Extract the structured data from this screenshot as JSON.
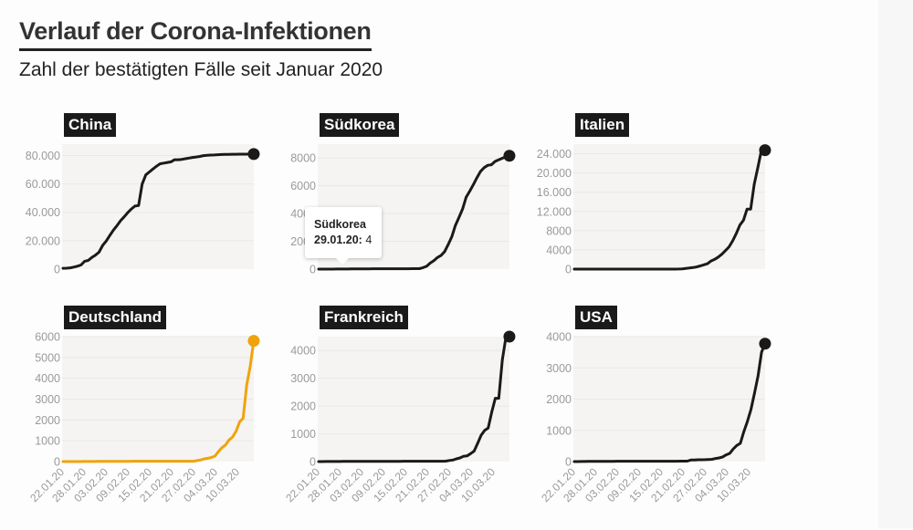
{
  "header": {
    "title": "Verlauf der Corona-Infektionen",
    "subtitle": "Zahl der bestätigten Fälle seit Januar 2020"
  },
  "tooltip": {
    "country": "Südkorea",
    "date": "29.01.20:",
    "value": "4"
  },
  "colors": {
    "line_default": "#1a1a1a",
    "line_highlight": "#f0a30a",
    "plot_bg": "#f5f4f2",
    "grid": "#e8e8e8",
    "tick_text": "#9a9a9a"
  },
  "chart_data": [
    {
      "type": "line",
      "title": "China",
      "x_start": "22.01.20",
      "x_end": "15.03.20",
      "xticks": [],
      "ylim": [
        0,
        88000
      ],
      "yticks": [
        0,
        20000,
        40000,
        60000,
        80000
      ],
      "ytick_labels": [
        "0",
        "20.000",
        "40.000",
        "60.000",
        "80.000"
      ],
      "values": [
        548,
        643,
        920,
        1406,
        2075,
        2877,
        5509,
        6087,
        8141,
        9802,
        11891,
        16630,
        19716,
        23707,
        27440,
        30587,
        34110,
        36814,
        39829,
        42354,
        44386,
        44759,
        59895,
        66358,
        68413,
        70513,
        72434,
        74211,
        74619,
        75077,
        75550,
        77001,
        77022,
        77241,
        77754,
        78166,
        78600,
        78928,
        79356,
        79932,
        80136,
        80261,
        80386,
        80537,
        80690,
        80770,
        80823,
        80860,
        80887,
        80921,
        80932,
        80945,
        80977,
        81003
      ],
      "highlight": false
    },
    {
      "type": "line",
      "title": "Südkorea",
      "x_start": "22.01.20",
      "x_end": "15.03.20",
      "xticks": [],
      "ylim": [
        0,
        9000
      ],
      "yticks": [
        0,
        2000,
        4000,
        6000,
        8000
      ],
      "ytick_labels": [
        "0",
        "2000",
        "4000",
        "6000",
        "8000"
      ],
      "values": [
        1,
        1,
        2,
        2,
        3,
        4,
        4,
        4,
        4,
        11,
        12,
        15,
        15,
        16,
        19,
        23,
        24,
        24,
        25,
        27,
        28,
        28,
        28,
        28,
        28,
        29,
        30,
        31,
        31,
        104,
        204,
        433,
        602,
        833,
        977,
        1261,
        1766,
        2337,
        3150,
        3736,
        4335,
        5186,
        5621,
        6088,
        6593,
        7041,
        7314,
        7478,
        7513,
        7755,
        7869,
        7979,
        8086,
        8162
      ],
      "highlight": false
    },
    {
      "type": "line",
      "title": "Italien",
      "x_start": "22.01.20",
      "x_end": "15.03.20",
      "xticks": [],
      "ylim": [
        0,
        26000
      ],
      "yticks": [
        0,
        4000,
        8000,
        12000,
        16000,
        20000,
        24000
      ],
      "ytick_labels": [
        "0",
        "4000",
        "8000",
        "12.000",
        "16.000",
        "20.000",
        "24.000"
      ],
      "values": [
        0,
        0,
        0,
        0,
        0,
        0,
        0,
        0,
        0,
        2,
        2,
        2,
        2,
        2,
        2,
        2,
        3,
        3,
        3,
        3,
        3,
        3,
        3,
        3,
        3,
        3,
        3,
        3,
        3,
        20,
        62,
        155,
        229,
        322,
        453,
        655,
        888,
        1128,
        1694,
        2036,
        2502,
        3089,
        3858,
        4636,
        5883,
        7375,
        9172,
        10149,
        12462,
        12462,
        17660,
        21157,
        24747,
        24747
      ],
      "highlight": false
    },
    {
      "type": "line",
      "title": "Deutschland",
      "x_start": "22.01.20",
      "x_end": "15.03.20",
      "xticks": [
        "22.01.20",
        "28.01.20",
        "03.02.20",
        "09.02.20",
        "15.02.20",
        "21.02.20",
        "27.02.20",
        "04.03.20",
        "10.03.20"
      ],
      "ylim": [
        0,
        6000
      ],
      "yticks": [
        0,
        1000,
        2000,
        3000,
        4000,
        5000,
        6000
      ],
      "ytick_labels": [
        "0",
        "1000",
        "2000",
        "3000",
        "4000",
        "5000",
        "6000"
      ],
      "values": [
        0,
        0,
        0,
        0,
        0,
        1,
        4,
        4,
        4,
        5,
        8,
        10,
        12,
        12,
        12,
        12,
        13,
        13,
        14,
        14,
        16,
        16,
        16,
        16,
        16,
        16,
        16,
        16,
        16,
        16,
        16,
        16,
        16,
        16,
        16,
        16,
        16,
        16,
        48,
        79,
        130,
        159,
        196,
        262,
        482,
        670,
        799,
        1040,
        1176,
        1457,
        1908,
        2078,
        3675,
        4585,
        5795
      ],
      "highlight": true
    },
    {
      "type": "line",
      "title": "Frankreich",
      "x_start": "22.01.20",
      "x_end": "15.03.20",
      "xticks": [
        "22.01.20",
        "28.01.20",
        "03.02.20",
        "09.02.20",
        "15.02.20",
        "21.02.20",
        "27.02.20",
        "04.03.20",
        "10.03.20"
      ],
      "ylim": [
        0,
        4500
      ],
      "yticks": [
        0,
        1000,
        2000,
        3000,
        4000
      ],
      "ytick_labels": [
        "0",
        "1000",
        "2000",
        "3000",
        "4000"
      ],
      "values": [
        0,
        0,
        2,
        3,
        3,
        3,
        4,
        5,
        5,
        5,
        6,
        6,
        6,
        6,
        6,
        6,
        6,
        11,
        11,
        11,
        11,
        11,
        11,
        11,
        12,
        12,
        12,
        12,
        12,
        12,
        12,
        12,
        12,
        12,
        12,
        12,
        18,
        38,
        57,
        100,
        130,
        191,
        204,
        285,
        377,
        653,
        949,
        1126,
        1209,
        1784,
        2281,
        2281,
        3661,
        4469,
        4499
      ],
      "highlight": false
    },
    {
      "type": "line",
      "title": "USA",
      "x_start": "22.01.20",
      "x_end": "15.03.20",
      "xticks": [
        "22.01.20",
        "28.01.20",
        "03.02.20",
        "09.02.20",
        "15.02.20",
        "21.02.20",
        "27.02.20",
        "04.03.20",
        "10.03.20"
      ],
      "ylim": [
        0,
        4000
      ],
      "yticks": [
        0,
        1000,
        2000,
        3000,
        4000
      ],
      "ytick_labels": [
        "0",
        "1000",
        "2000",
        "3000",
        "4000"
      ],
      "values": [
        1,
        1,
        2,
        2,
        5,
        5,
        5,
        5,
        5,
        7,
        8,
        8,
        11,
        11,
        11,
        11,
        11,
        11,
        11,
        11,
        12,
        12,
        13,
        13,
        13,
        13,
        13,
        13,
        13,
        13,
        15,
        15,
        15,
        51,
        51,
        57,
        58,
        60,
        68,
        74,
        98,
        118,
        149,
        217,
        262,
        402,
        518,
        583,
        959,
        1281,
        1663,
        2179,
        2727,
        3499,
        3774
      ],
      "highlight": false
    }
  ]
}
